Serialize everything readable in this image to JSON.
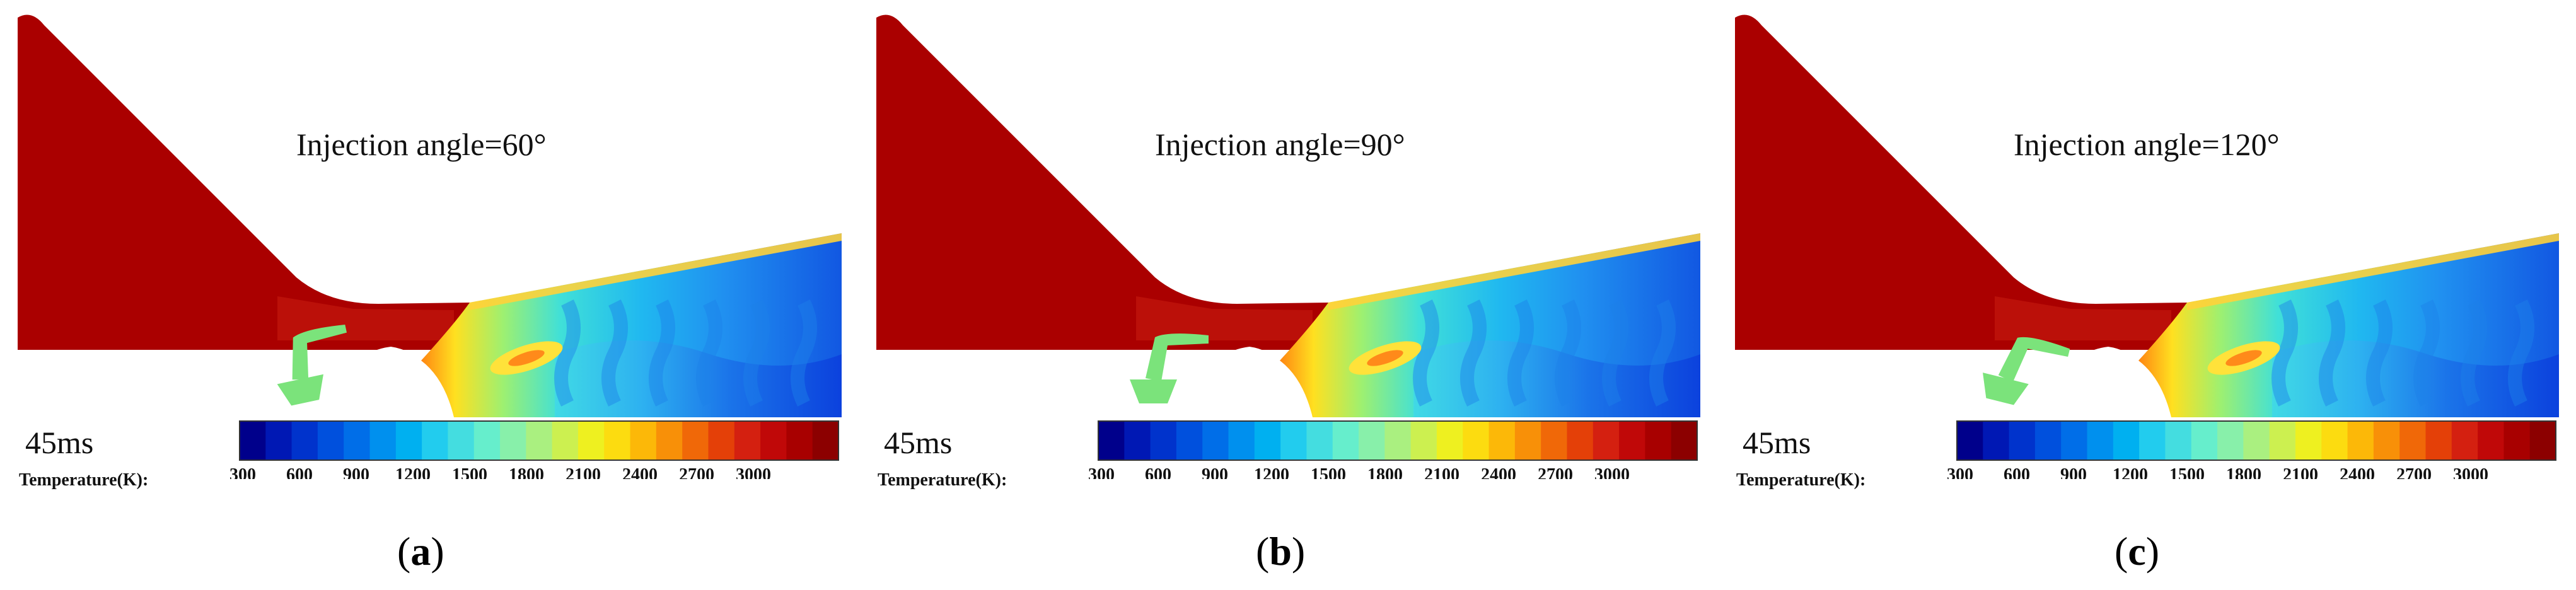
{
  "figure": {
    "panels": [
      {
        "id": "a",
        "caption_letter": "a",
        "angle_label": "Injection angle=60°",
        "time_label": "45ms",
        "injector_rotation": -12
      },
      {
        "id": "b",
        "caption_letter": "b",
        "angle_label": "Injection angle=90°",
        "time_label": "45ms",
        "injector_rotation": 0
      },
      {
        "id": "c",
        "caption_letter": "c",
        "angle_label": "Injection angle=120°",
        "time_label": "45ms",
        "injector_rotation": 14
      }
    ],
    "colorbar": {
      "title": "Temperature(K):",
      "ticks": [
        "300",
        "600",
        "900",
        "1200",
        "1500",
        "1800",
        "2100",
        "2400",
        "2700",
        "3000"
      ],
      "range_k": [
        300,
        3300
      ],
      "colors": [
        "#00008b",
        "#0018b4",
        "#0033cc",
        "#0050dd",
        "#006ee8",
        "#0090ee",
        "#00b0f0",
        "#22ccee",
        "#44dde0",
        "#66eecc",
        "#88f0aa",
        "#aaf080",
        "#ccf050",
        "#eef020",
        "#fcdc10",
        "#fcb808",
        "#f89008",
        "#f06808",
        "#e44008",
        "#d42010",
        "#c00808",
        "#a80000",
        "#8c0000"
      ]
    },
    "colors": {
      "hot": "#aa0000",
      "nozzle_surface": "#c81e10",
      "injector": "#7be37b",
      "cold": "#0a3cdc"
    }
  }
}
